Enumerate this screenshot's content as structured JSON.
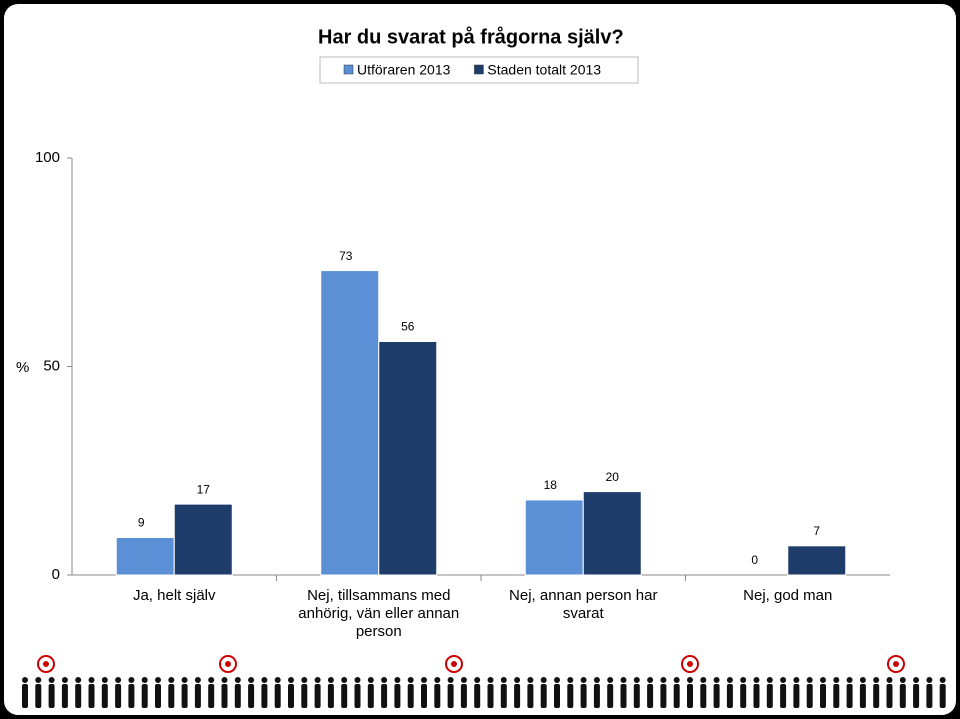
{
  "chart_data": {
    "type": "bar",
    "title": "Har du svarat på frågorna själv?",
    "ylabel": "%",
    "categories": [
      "Ja, helt själv",
      "Nej, tillsammans med anhörig, vän eller annan person",
      "Nej, annan person har svarat",
      "Nej, god man"
    ],
    "series": [
      {
        "name": "Utföraren 2013",
        "color": "#5b8fd6",
        "values": [
          9,
          73,
          18,
          0
        ]
      },
      {
        "name": "Staden totalt 2013",
        "color": "#1f3d6b",
        "values": [
          17,
          56,
          20,
          7
        ]
      }
    ],
    "ylim": [
      0,
      100
    ],
    "yticks": [
      0,
      50,
      100
    ],
    "legend": "top"
  }
}
